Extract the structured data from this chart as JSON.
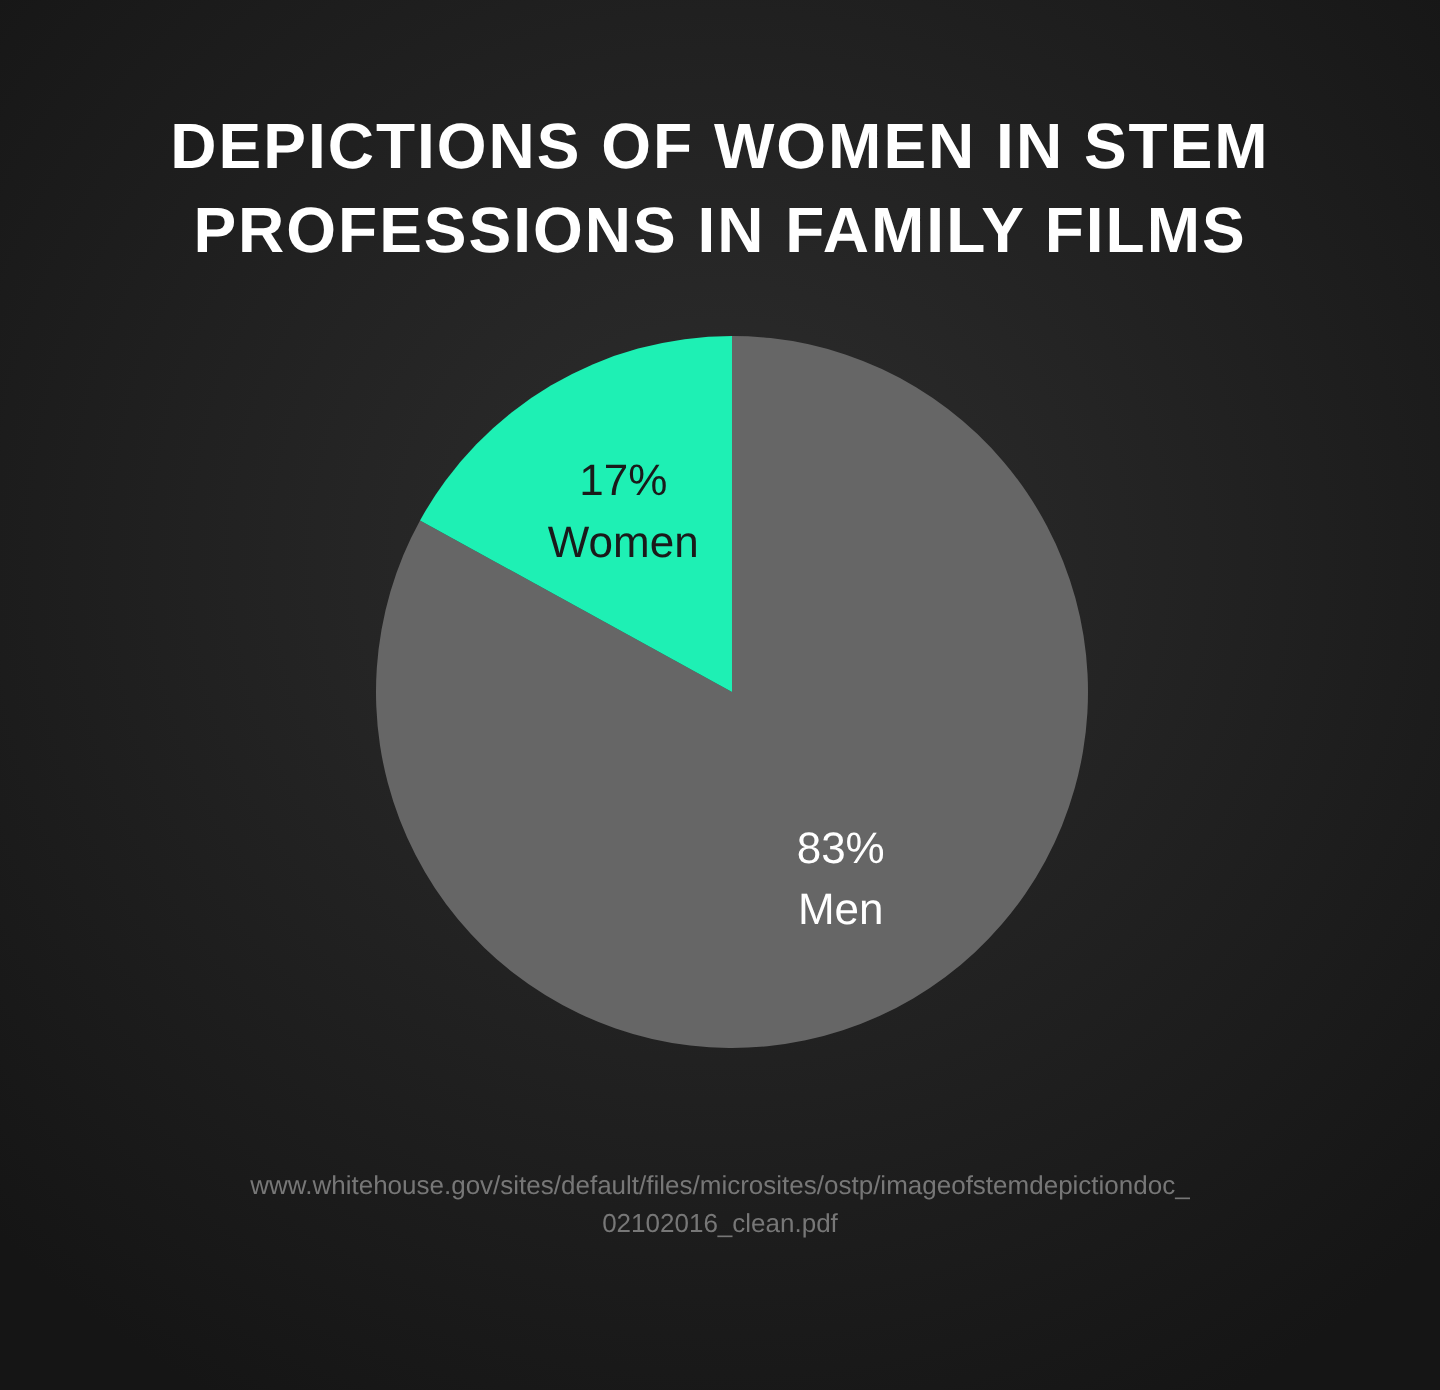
{
  "chart_data": {
    "type": "pie",
    "title": "DEPICTIONS OF WOMEN IN STEM PROFESSIONS IN FAMILY FILMS",
    "categories": [
      "Men",
      "Women"
    ],
    "values": [
      83,
      17
    ],
    "colors": [
      "#666666",
      "#1ef0b4"
    ],
    "value_labels": [
      "83%",
      "17%"
    ],
    "legend": false,
    "annotations": [
      "www.whitehouse.gov/sites/default/files/microsites/ostp/imageofstemdepictiondoc_02102016_clean.pdf"
    ]
  }
}
